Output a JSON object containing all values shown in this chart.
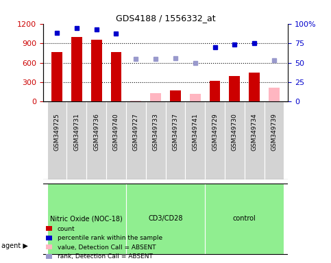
{
  "title": "GDS4188 / 1556332_at",
  "samples": [
    "GSM349725",
    "GSM349731",
    "GSM349736",
    "GSM349740",
    "GSM349727",
    "GSM349733",
    "GSM349737",
    "GSM349741",
    "GSM349729",
    "GSM349730",
    "GSM349734",
    "GSM349739"
  ],
  "counts_present": [
    760,
    1000,
    950,
    760,
    null,
    null,
    175,
    null,
    320,
    400,
    450,
    null
  ],
  "counts_absent": [
    null,
    null,
    null,
    null,
    20,
    130,
    null,
    120,
    null,
    null,
    null,
    215
  ],
  "rank_present": [
    88,
    94,
    93,
    87,
    null,
    null,
    null,
    null,
    70,
    73,
    75,
    null
  ],
  "rank_absent": [
    null,
    null,
    null,
    null,
    55,
    55,
    56,
    50,
    null,
    null,
    null,
    53
  ],
  "group_spans": [
    {
      "start": 0,
      "end": 3,
      "label": "Nitric Oxide (NOC-18)",
      "color": "#90EE90"
    },
    {
      "start": 4,
      "end": 7,
      "label": "CD3/CD28",
      "color": "#90EE90"
    },
    {
      "start": 8,
      "end": 11,
      "label": "control",
      "color": "#90EE90"
    }
  ],
  "ylim_left": [
    0,
    1200
  ],
  "ylim_right": [
    0,
    100
  ],
  "yticks_left": [
    0,
    300,
    600,
    900,
    1200
  ],
  "yticks_right": [
    0,
    25,
    50,
    75,
    100
  ],
  "bar_color_present": "#cc0000",
  "bar_color_absent": "#ffb6c1",
  "dot_color_present": "#0000cc",
  "dot_color_absent": "#9999cc",
  "bar_width": 0.55,
  "legend_items": [
    {
      "label": "count",
      "color": "#cc0000"
    },
    {
      "label": "percentile rank within the sample",
      "color": "#0000cc"
    },
    {
      "label": "value, Detection Call = ABSENT",
      "color": "#ffb6c1"
    },
    {
      "label": "rank, Detection Call = ABSENT",
      "color": "#9999cc"
    }
  ],
  "left_yaxis_color": "#cc0000",
  "right_yaxis_color": "#0000cc",
  "tick_bg_color": "#d3d3d3",
  "background_color": "#ffffff"
}
